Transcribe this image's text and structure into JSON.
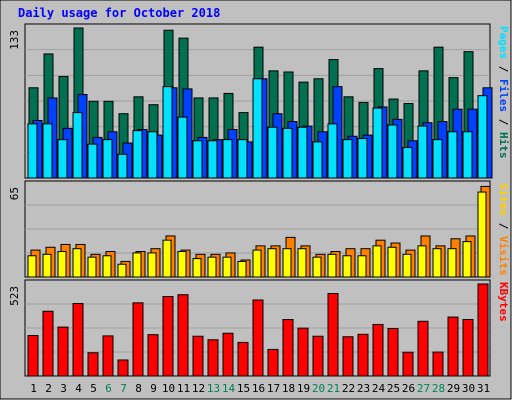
{
  "chart_data": {
    "type": "bar",
    "title": "Daily usage for October 2018",
    "days": [
      "1",
      "2",
      "3",
      "4",
      "5",
      "6",
      "7",
      "8",
      "9",
      "10",
      "11",
      "12",
      "13",
      "14",
      "15",
      "16",
      "17",
      "18",
      "19",
      "20",
      "21",
      "22",
      "23",
      "24",
      "25",
      "26",
      "27",
      "28",
      "29",
      "30",
      "31"
    ],
    "weekend_days": [
      "6",
      "7",
      "13",
      "14",
      "20",
      "21",
      "27",
      "28"
    ],
    "panels": [
      {
        "id": "pages_files_hits",
        "ymax_label": "133",
        "ymax": 133,
        "right_label_parts": [
          "Pages",
          "Files",
          "Hits"
        ],
        "series": [
          {
            "name": "Hits",
            "color": "#007050",
            "values": [
              80,
              110,
              90,
              133,
              68,
              68,
              57,
              72,
              65,
              131,
              124,
              71,
              71,
              75,
              58,
              116,
              95,
              94,
              85,
              88,
              105,
              72,
              67,
              97,
              70,
              66,
              95,
              116,
              89,
              112,
              70
            ]
          },
          {
            "name": "Files",
            "color": "#0040ff",
            "values": [
              51,
              71,
              44,
              74,
              36,
              41,
              31,
              43,
              38,
              80,
              79,
              36,
              34,
              43,
              32,
              88,
              57,
              50,
              46,
              41,
              81,
              37,
              38,
              63,
              52,
              33,
              49,
              50,
              61,
              61,
              80
            ]
          },
          {
            "name": "Pages",
            "color": "#00e0ff",
            "values": [
              48,
              48,
              34,
              58,
              30,
              34,
              21,
              42,
              41,
              81,
              54,
              33,
              33,
              34,
              34,
              88,
              45,
              44,
              45,
              32,
              48,
              34,
              35,
              62,
              47,
              27,
              46,
              34,
              41,
              41,
              73
            ]
          }
        ]
      },
      {
        "id": "sites_visits",
        "ymax_label": "65",
        "ymax": 65,
        "right_label_parts": [
          "Sites",
          "Visits"
        ],
        "series": [
          {
            "name": "Visits",
            "color": "#ff8000",
            "values": [
              19,
              21,
              23,
              23,
              16,
              18,
              11,
              18,
              20,
              29,
              19,
              16,
              16,
              17,
              12,
              22,
              22,
              28,
              22,
              16,
              18,
              20,
              20,
              26,
              24,
              19,
              29,
              22,
              27,
              29,
              64
            ]
          },
          {
            "name": "Sites",
            "color": "#ffff00",
            "values": [
              15,
              16,
              18,
              20,
              14,
              15,
              9,
              17,
              17,
              26,
              18,
              13,
              14,
              14,
              11,
              19,
              20,
              20,
              20,
              14,
              16,
              15,
              15,
              22,
              21,
              16,
              22,
              20,
              20,
              25,
              60
            ]
          }
        ]
      },
      {
        "id": "kbytes",
        "ymax_label": "523",
        "ymax": 523,
        "right_label_parts": [
          "KBytes"
        ],
        "series": [
          {
            "name": "KBytes",
            "color": "#ff0000",
            "values": [
              230,
              368,
              278,
              412,
              132,
              228,
              91,
              416,
              235,
              452,
              462,
              226,
              206,
              243,
              191,
              432,
              151,
              321,
              272,
              226,
              469,
              223,
              237,
              293,
              270,
              135,
              311,
              136,
              335,
              321,
              523
            ]
          }
        ]
      }
    ]
  },
  "colors": {
    "frame_bg": "#c0c0c0",
    "border": "#000000",
    "title": "#0000ff",
    "axis": "#000000",
    "weekday_text": "#000000",
    "weekend_text": "#00805a"
  }
}
